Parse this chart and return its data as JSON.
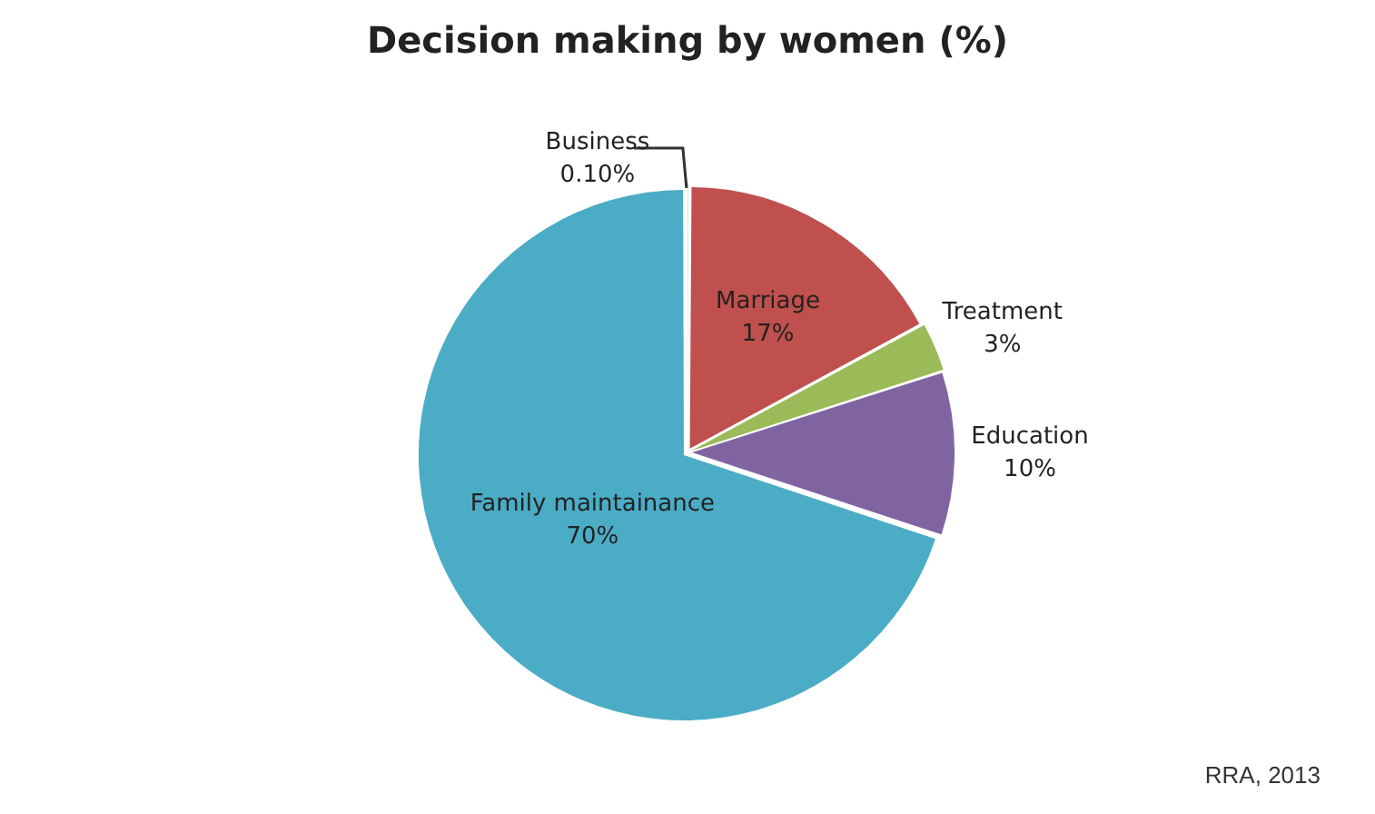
{
  "chart_data": {
    "type": "pie",
    "title": "Decision making by women (%)",
    "categories": [
      "Business",
      "Marriage",
      "Treatment",
      "Education",
      "Family maintainance"
    ],
    "values": [
      0.1,
      17,
      3,
      10,
      70
    ],
    "value_labels": [
      "0.10%",
      "17%",
      "3%",
      "10%",
      "70%"
    ],
    "colors": [
      "#4f81bd",
      "#c0504d",
      "#9bbb59",
      "#8064a2",
      "#4bacc6"
    ],
    "legend": false,
    "annotations": [
      "RRA, 2013"
    ]
  }
}
